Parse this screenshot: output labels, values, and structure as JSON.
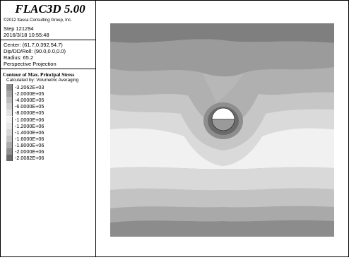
{
  "app": {
    "title": "FLAC3D 5.00",
    "copyright": "©2012 Itasca Consulting Group, Inc."
  },
  "step": "Step 121294",
  "datetime": "2016/3/18 10:55:48",
  "view": {
    "center": "Center: (61.7,0.392,54.7)",
    "dip": "Dip/DD/Roll: (90.0,0.0,0.0)",
    "radius": "Radius: 65.2",
    "projection": "Perspective Projection"
  },
  "legend": {
    "title": "Contour of Max. Principal Stress",
    "subtitle": "Calculated by: Volumetric Averaging",
    "items": [
      {
        "label": "-3.2062E+03",
        "color": "#8c8c8c"
      },
      {
        "label": "-2.0000E+05",
        "color": "#a6a6a6"
      },
      {
        "label": "-4.0000E+05",
        "color": "#bcbcbc"
      },
      {
        "label": "-6.0000E+05",
        "color": "#d0d0d0"
      },
      {
        "label": "-8.0000E+05",
        "color": "#e3e3e3"
      },
      {
        "label": "-1.0000E+06",
        "color": "#f2f2f2"
      },
      {
        "label": "-1.2000E+06",
        "color": "#e8e8e8"
      },
      {
        "label": "-1.4000E+06",
        "color": "#d8d8d8"
      },
      {
        "label": "-1.6000E+06",
        "color": "#c4c4c4"
      },
      {
        "label": "-1.8000E+06",
        "color": "#acacac"
      },
      {
        "label": "-2.0000E+06",
        "color": "#8e8e8e"
      },
      {
        "label": "-2.0082E+06",
        "color": "#6a6a6a"
      }
    ]
  }
}
